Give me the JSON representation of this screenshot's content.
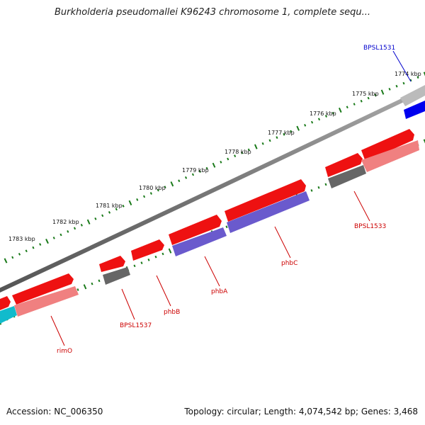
{
  "title": "Burkholderia pseudomallei K96243 chromosome 1, complete sequ...",
  "footer": {
    "accession": "Accession: NC_006350",
    "summary": "Topology: circular; Length: 4,074,542 bp; Genes: 3,468"
  },
  "colors": {
    "backbone": "#808080",
    "tick": "#1a7a1a",
    "label_red": "#cc0000",
    "label_blue": "#0000cc",
    "gene_red": "#ee1111",
    "gene_pink": "#f08080",
    "gene_purple": "#6a5acd",
    "gene_gray": "#666666",
    "gene_lightgray": "#bbbbbb",
    "gene_blue": "#0000ee",
    "gene_cyan": "#11bbcc"
  },
  "kbp_labels": [
    "1774 kbp",
    "1775 kbp",
    "1776 kbp",
    "1777 kbp",
    "1778 kbp",
    "1779 kbp",
    "1780 kbp",
    "1781 kbp",
    "1782 kbp",
    "1783 kbp"
  ],
  "gene_labels": [
    {
      "text": "BPSL1531",
      "color": "blue"
    },
    {
      "text": "BPSL1533",
      "color": "red"
    },
    {
      "text": "phbC",
      "color": "red"
    },
    {
      "text": "phbA",
      "color": "red"
    },
    {
      "text": "phbB",
      "color": "red"
    },
    {
      "text": "BPSL1537",
      "color": "red"
    },
    {
      "text": "rimO",
      "color": "red"
    }
  ]
}
